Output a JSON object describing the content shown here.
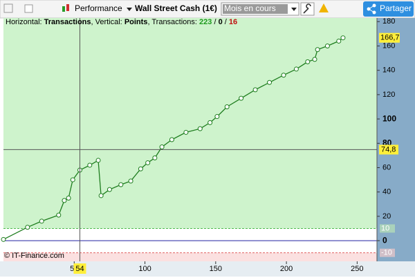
{
  "toolbar": {
    "view": "Performance",
    "instrument": "Wall Street Cash (1€)",
    "period": "Mois en cours",
    "share": "Partager"
  },
  "info": {
    "h_label": "Horizontal:",
    "h_value": "Transactions",
    "v_label": ", Vertical:",
    "v_value": "Points",
    "t_label": ", Transactions:",
    "wins": "223",
    "sep1": "/",
    "even": "0",
    "sep2": "/",
    "losses": "16"
  },
  "footer": "© IT-Finance.com",
  "chart_data": {
    "type": "line",
    "series": [
      {
        "color": "#1e7d1e",
        "x": [
          0,
          17,
          27,
          39,
          43,
          46,
          49,
          54,
          61,
          67,
          69,
          75,
          83,
          90,
          97,
          102,
          107,
          112,
          119,
          129,
          139,
          146,
          151,
          158,
          168,
          178,
          188,
          198,
          207,
          215,
          220,
          222,
          229,
          237,
          240
        ],
        "values": [
          1,
          11,
          16,
          21,
          33,
          35,
          50,
          58,
          62,
          66,
          37,
          42,
          46,
          49,
          59,
          64,
          68,
          77,
          83,
          89,
          92,
          97,
          102,
          110,
          117,
          124,
          130,
          136,
          141,
          147,
          149,
          157,
          160,
          164,
          166.7
        ]
      }
    ],
    "xlim": [
      0,
      264
    ],
    "ylim": [
      -17,
      183
    ],
    "xticks": [
      50,
      100,
      150,
      200,
      250
    ],
    "yticks": [
      0,
      20,
      40,
      60,
      80,
      100,
      120,
      140,
      160,
      180
    ],
    "levels": [
      10,
      -10
    ],
    "last_value": {
      "value": 166.7,
      "label": "166,7"
    },
    "crosshair": {
      "x": 54,
      "y": {
        "value": 74.8,
        "label": "74,8"
      }
    },
    "grid": false
  }
}
